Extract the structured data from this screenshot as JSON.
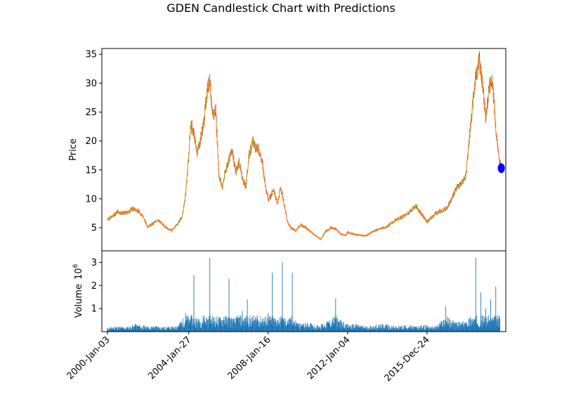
{
  "chart_data": [
    {
      "type": "candlestick",
      "title": "GDEN Candlestick Chart with Predictions",
      "ylabel": "Price",
      "ylim": [
        1,
        36
      ],
      "yticks": [
        5,
        10,
        15,
        20,
        25,
        30,
        35
      ],
      "xlim": [
        "1999-09-25",
        "2019-12-01"
      ],
      "grid": false,
      "colors": {
        "up": "#2ca02c",
        "down": "#d62728",
        "close_line": "#ff7f0e",
        "prediction": "#0000ff"
      },
      "series": [
        {
          "name": "",
          "x": [
            "2000-01-03",
            "2000-04-01",
            "2000-07-01",
            "2000-10-01",
            "2001-01-01",
            "2001-04-01",
            "2001-07-01",
            "2001-10-01",
            "2002-01-01",
            "2002-04-01",
            "2002-07-01",
            "2002-10-01",
            "2003-01-01",
            "2003-04-01",
            "2003-07-01",
            "2003-10-01",
            "2003-12-01",
            "2004-01-27",
            "2004-03-01",
            "2004-05-01",
            "2004-07-01",
            "2004-09-01",
            "2004-11-01",
            "2005-01-01",
            "2005-02-15",
            "2005-04-01",
            "2005-06-01",
            "2005-08-01",
            "2005-10-01",
            "2005-12-01",
            "2006-02-01",
            "2006-04-01",
            "2006-06-01",
            "2006-08-01",
            "2006-10-01",
            "2006-12-01",
            "2007-02-01",
            "2007-04-01",
            "2007-06-01",
            "2007-08-01",
            "2007-10-01",
            "2007-12-01",
            "2008-01-16",
            "2008-03-01",
            "2008-05-01",
            "2008-07-01",
            "2008-09-01",
            "2008-11-01",
            "2009-01-01",
            "2009-03-01",
            "2009-06-01",
            "2009-09-01",
            "2009-12-01",
            "2010-03-01",
            "2010-06-01",
            "2010-09-01",
            "2010-12-01",
            "2011-03-01",
            "2011-06-01",
            "2011-09-01",
            "2011-12-01",
            "2012-01-04",
            "2012-06-01",
            "2012-12-01",
            "2013-06-01",
            "2013-12-01",
            "2014-06-01",
            "2014-12-01",
            "2015-06-01",
            "2015-12-24",
            "2016-06-01",
            "2016-12-01",
            "2017-03-01",
            "2017-06-01",
            "2017-09-01",
            "2017-12-01",
            "2018-02-01",
            "2018-04-01",
            "2018-06-01",
            "2018-08-01",
            "2018-10-01",
            "2018-12-01",
            "2019-02-01",
            "2019-04-01",
            "2019-06-01",
            "2019-08-01",
            "2019-09-01"
          ],
          "close": [
            6.5,
            6.9,
            7.8,
            7.5,
            7.6,
            8.3,
            8.0,
            7.2,
            5.2,
            5.6,
            6.3,
            5.7,
            4.8,
            4.6,
            5.6,
            7.0,
            10.8,
            17.5,
            23.0,
            21.0,
            18.0,
            20.5,
            23.5,
            29.0,
            31.0,
            24.0,
            25.5,
            14.0,
            12.0,
            15.0,
            17.0,
            18.5,
            14.5,
            16.5,
            13.5,
            12.0,
            17.5,
            20.0,
            19.0,
            18.5,
            16.0,
            12.0,
            10.0,
            10.5,
            11.5,
            9.0,
            12.0,
            9.0,
            6.0,
            5.0,
            4.5,
            5.5,
            5.0,
            4.3,
            3.6,
            3.0,
            4.4,
            5.0,
            4.8,
            3.9,
            3.7,
            4.2,
            3.8,
            3.6,
            4.6,
            5.1,
            6.3,
            7.2,
            8.8,
            6.0,
            7.5,
            8.3,
            9.6,
            11.8,
            12.5,
            14.0,
            20.5,
            26.0,
            31.5,
            34.0,
            30.0,
            24.0,
            29.5,
            30.5,
            22.0,
            16.5,
            15.5
          ]
        }
      ],
      "predictions": [
        {
          "x": "2019-09-10",
          "y": 15.3
        }
      ]
    },
    {
      "type": "bar",
      "ylabel": "Volume",
      "scale_exponent": "6",
      "yticks": [
        1,
        2,
        3
      ],
      "ylim": [
        0,
        3.5
      ],
      "colors": {
        "bar": "#1f77b4"
      },
      "xticks": [
        "2000-Jan-03",
        "2004-Jan-27",
        "2008-Jan-16",
        "2012-Jan-04",
        "2015-Dec-24"
      ],
      "x": [
        "2000-01-03",
        "2000-06-01",
        "2001-01-01",
        "2001-06-01",
        "2002-01-01",
        "2002-06-01",
        "2003-01-01",
        "2003-06-01",
        "2003-12-01",
        "2004-03-01",
        "2004-05-01",
        "2004-08-01",
        "2004-11-01",
        "2005-02-15",
        "2005-05-01",
        "2005-08-01",
        "2005-11-01",
        "2006-02-01",
        "2006-05-01",
        "2006-07-15",
        "2006-10-01",
        "2007-01-01",
        "2007-04-01",
        "2007-07-01",
        "2007-10-01",
        "2008-01-16",
        "2008-04-01",
        "2008-07-01",
        "2008-10-01",
        "2009-01-01",
        "2009-04-01",
        "2009-07-01",
        "2009-10-01",
        "2010-01-01",
        "2010-04-01",
        "2010-07-01",
        "2010-10-01",
        "2011-01-01",
        "2011-06-01",
        "2011-12-01",
        "2012-03-01",
        "2012-06-01",
        "2012-12-01",
        "2013-06-01",
        "2013-12-01",
        "2014-06-01",
        "2014-12-01",
        "2015-06-01",
        "2015-12-24",
        "2016-06-01",
        "2016-12-01",
        "2017-06-01",
        "2017-12-01",
        "2018-03-01",
        "2018-06-01",
        "2018-09-01",
        "2018-12-01",
        "2019-03-01",
        "2019-06-01",
        "2019-08-15"
      ],
      "values": [
        0.15,
        0.2,
        0.18,
        0.3,
        0.2,
        0.22,
        0.18,
        0.2,
        0.8,
        0.6,
        2.45,
        0.5,
        0.7,
        3.2,
        0.6,
        0.55,
        0.65,
        2.3,
        0.5,
        0.7,
        0.9,
        1.4,
        0.6,
        0.7,
        0.55,
        0.8,
        2.55,
        0.5,
        3.0,
        0.45,
        2.55,
        0.35,
        0.3,
        0.35,
        0.3,
        0.25,
        0.3,
        0.4,
        1.45,
        0.3,
        0.25,
        0.3,
        0.2,
        0.25,
        0.3,
        0.2,
        0.25,
        0.2,
        0.25,
        0.2,
        1.1,
        0.35,
        0.4,
        0.6,
        3.2,
        1.7,
        1.0,
        1.4,
        1.95,
        0.6
      ]
    }
  ]
}
